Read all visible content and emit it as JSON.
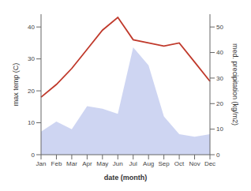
{
  "chart_data": {
    "type": "line",
    "categories": [
      "Jan",
      "Feb",
      "Mar",
      "Apr",
      "May",
      "Jun",
      "Jul",
      "Aug",
      "Sep",
      "Oct",
      "Nov",
      "Dec"
    ],
    "xlabel": "date (month)",
    "ylabel": "max temp (C)",
    "y2label": "med. precipitation (kg/m2)",
    "series": [
      {
        "type": "area",
        "axis": "y2",
        "color": "#c5cef0",
        "values": [
          9,
          13,
          10,
          19,
          18,
          16,
          42,
          35,
          15,
          8,
          7,
          8
        ]
      },
      {
        "type": "line",
        "color": "#c0392b",
        "values": [
          18,
          22,
          27,
          33,
          39,
          43,
          36,
          35,
          34,
          35,
          29,
          23
        ]
      }
    ],
    "ylim": [
      0,
      44
    ],
    "yticks": [
      0,
      10,
      20,
      30,
      40
    ],
    "y2lim": [
      0,
      55
    ],
    "y2ticks": [
      0,
      10,
      20,
      30,
      40,
      50
    ],
    "grid": false
  }
}
